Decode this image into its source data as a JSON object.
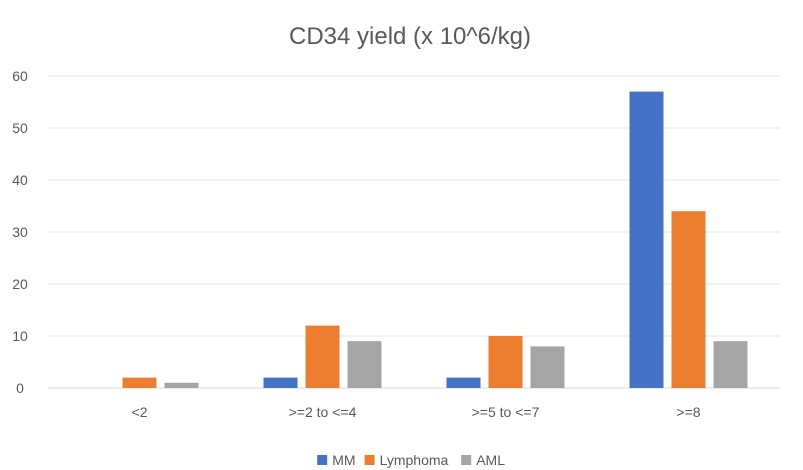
{
  "chart_data": {
    "type": "bar",
    "title": "CD34 yield (x 10^6/kg)",
    "categories": [
      "<2",
      ">=2 to <=4",
      ">=5 to <=7",
      ">=8"
    ],
    "series": [
      {
        "name": "MM",
        "values": [
          0,
          2,
          2,
          57
        ],
        "color": "#4472c4"
      },
      {
        "name": "Lymphoma",
        "values": [
          2,
          12,
          10,
          34
        ],
        "color": "#ed7d31"
      },
      {
        "name": "AML",
        "values": [
          1,
          9,
          8,
          9
        ],
        "color": "#a5a5a5"
      }
    ],
    "ylim": [
      0,
      60
    ],
    "yticks": [
      0,
      10,
      20,
      30,
      40,
      50,
      60
    ],
    "grid": true,
    "legend": "bottom"
  }
}
